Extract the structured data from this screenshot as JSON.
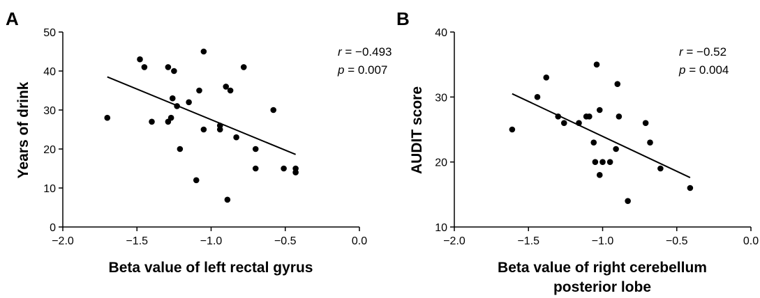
{
  "chart_data": [
    {
      "type": "scatter",
      "panel_label": "A",
      "xlabel": "Beta value of left rectal gyrus",
      "ylabel": "Years of drink",
      "xlim": [
        -2.0,
        0.0
      ],
      "ylim": [
        0,
        50
      ],
      "x_ticks": [
        "−2.0",
        "−1.5",
        "−1.0",
        "−0.5",
        "0.0"
      ],
      "y_ticks": [
        "0",
        "10",
        "20",
        "30",
        "40",
        "50"
      ],
      "stat_r_var": "r",
      "stat_r_value": " = −0.493",
      "stat_p_var": "p",
      "stat_p_value": " = 0.007",
      "points": [
        {
          "x": -1.7,
          "y": 28
        },
        {
          "x": -1.48,
          "y": 43
        },
        {
          "x": -1.45,
          "y": 41
        },
        {
          "x": -1.4,
          "y": 27
        },
        {
          "x": -1.29,
          "y": 41
        },
        {
          "x": -1.29,
          "y": 27
        },
        {
          "x": -1.27,
          "y": 28
        },
        {
          "x": -1.26,
          "y": 33
        },
        {
          "x": -1.25,
          "y": 40
        },
        {
          "x": -1.23,
          "y": 31
        },
        {
          "x": -1.21,
          "y": 20
        },
        {
          "x": -1.15,
          "y": 32
        },
        {
          "x": -1.1,
          "y": 12
        },
        {
          "x": -1.08,
          "y": 35
        },
        {
          "x": -1.05,
          "y": 45
        },
        {
          "x": -1.05,
          "y": 25
        },
        {
          "x": -0.94,
          "y": 26
        },
        {
          "x": -0.94,
          "y": 25
        },
        {
          "x": -0.9,
          "y": 36
        },
        {
          "x": -0.89,
          "y": 7
        },
        {
          "x": -0.87,
          "y": 35
        },
        {
          "x": -0.83,
          "y": 23
        },
        {
          "x": -0.78,
          "y": 41
        },
        {
          "x": -0.7,
          "y": 20
        },
        {
          "x": -0.7,
          "y": 15
        },
        {
          "x": -0.58,
          "y": 30
        },
        {
          "x": -0.51,
          "y": 15
        },
        {
          "x": -0.43,
          "y": 15
        },
        {
          "x": -0.43,
          "y": 14
        }
      ],
      "regression_line": {
        "x": [
          -1.7,
          -0.43
        ],
        "y": [
          38.5,
          18.6
        ]
      }
    },
    {
      "type": "scatter",
      "panel_label": "B",
      "xlabel": "Beta value of right cerebellum posterior lobe",
      "xlabel_lines": [
        "Beta value of right cerebellum",
        "posterior lobe"
      ],
      "ylabel": "AUDIT score",
      "xlim": [
        -2.0,
        0.0
      ],
      "ylim": [
        10,
        40
      ],
      "x_ticks": [
        "−2.0",
        "−1.5",
        "−1.0",
        "−0.5",
        "0.0"
      ],
      "y_ticks": [
        "10",
        "20",
        "30",
        "40"
      ],
      "stat_r_var": "r",
      "stat_r_value": " = −0.52",
      "stat_p_var": "p",
      "stat_p_value": " = 0.004",
      "points": [
        {
          "x": -1.61,
          "y": 25
        },
        {
          "x": -1.44,
          "y": 30
        },
        {
          "x": -1.38,
          "y": 33
        },
        {
          "x": -1.3,
          "y": 27
        },
        {
          "x": -1.26,
          "y": 26
        },
        {
          "x": -1.16,
          "y": 26
        },
        {
          "x": -1.11,
          "y": 27
        },
        {
          "x": -1.09,
          "y": 27
        },
        {
          "x": -1.06,
          "y": 23
        },
        {
          "x": -1.05,
          "y": 20
        },
        {
          "x": -1.04,
          "y": 35
        },
        {
          "x": -1.02,
          "y": 28
        },
        {
          "x": -1.02,
          "y": 18
        },
        {
          "x": -1.0,
          "y": 20
        },
        {
          "x": -0.95,
          "y": 20
        },
        {
          "x": -0.91,
          "y": 22
        },
        {
          "x": -0.9,
          "y": 32
        },
        {
          "x": -0.89,
          "y": 27
        },
        {
          "x": -0.83,
          "y": 14
        },
        {
          "x": -0.71,
          "y": 26
        },
        {
          "x": -0.68,
          "y": 23
        },
        {
          "x": -0.61,
          "y": 19
        },
        {
          "x": -0.41,
          "y": 16
        }
      ],
      "regression_line": {
        "x": [
          -1.61,
          -0.41
        ],
        "y": [
          30.5,
          17.6
        ]
      }
    }
  ]
}
